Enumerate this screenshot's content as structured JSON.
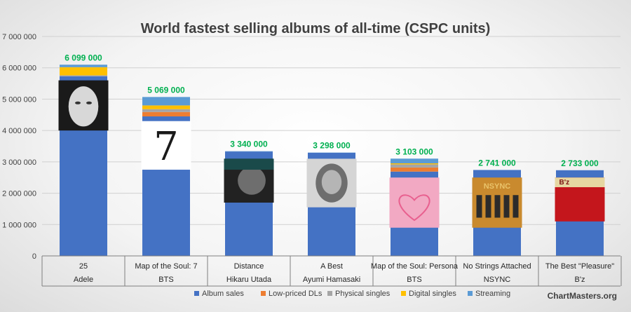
{
  "chart_data": {
    "type": "bar",
    "stacked": true,
    "title": "World fastest selling albums of all-time (CSPC units)",
    "categories": [
      "25",
      "Map of the Soul: 7",
      "Distance",
      "A Best",
      "Map of the Soul: Persona",
      "No Strings Attached",
      "The Best \"Pleasure\""
    ],
    "artists": [
      "Adele",
      "BTS",
      "Hikaru Utada",
      "Ayumi Hamasaki",
      "BTS",
      "NSYNC",
      "B'z"
    ],
    "totals_labels": [
      "6 099 000",
      "5 069 000",
      "3 340 000",
      "3 298 000",
      "3 103 000",
      "2 741 000",
      "2 733 000"
    ],
    "series": [
      {
        "name": "Album sales",
        "color": "#4472c4",
        "values": [
          5730000,
          4450000,
          3330000,
          3290000,
          2690000,
          2741000,
          2733000
        ]
      },
      {
        "name": "Low-priced DLs",
        "color": "#ed7d31",
        "values": [
          0,
          140000,
          0,
          0,
          130000,
          0,
          0
        ]
      },
      {
        "name": "Physical singles",
        "color": "#a5a5a5",
        "values": [
          30000,
          90000,
          0,
          0,
          100000,
          0,
          0
        ]
      },
      {
        "name": "Digital singles",
        "color": "#ffc000",
        "values": [
          260000,
          120000,
          0,
          0,
          33000,
          0,
          0
        ]
      },
      {
        "name": "Streaming",
        "color": "#5b9bd5",
        "values": [
          79000,
          269000,
          10000,
          8000,
          150000,
          0,
          0
        ]
      }
    ],
    "ylim": [
      0,
      7000000
    ],
    "yticks": [
      0,
      1000000,
      2000000,
      3000000,
      4000000,
      5000000,
      6000000,
      7000000
    ],
    "ytick_labels": [
      "0",
      "1 000 000",
      "2 000 000",
      "3 000 000",
      "4 000 000",
      "5 000 000",
      "6 000 000",
      "7 000 000"
    ],
    "grid": true,
    "legend": "bottom",
    "source": "ChartMasters.org",
    "covers": [
      {
        "bg": "#1a1a1a",
        "fg": "#d8d8d8",
        "text": "",
        "bottom": 4000000,
        "top": 5600000
      },
      {
        "bg": "#ffffff",
        "fg": "#1a1a1a",
        "text": "7",
        "bottom": 2750000,
        "top": 4300000
      },
      {
        "bg": "#222222",
        "fg": "#6e6e6e",
        "text": "",
        "bottom": 1700000,
        "top": 3100000
      },
      {
        "bg": "#d5d5d5",
        "fg": "#6e6e6e",
        "text": "",
        "bottom": 1550000,
        "top": 3100000
      },
      {
        "bg": "#f2a9c3",
        "fg": "#e8608f",
        "text": "",
        "bottom": 900000,
        "top": 2500000
      },
      {
        "bg": "#c98a2e",
        "fg": "#e9c36a",
        "text": "NSYNC",
        "bottom": 900000,
        "top": 2500000
      },
      {
        "bg": "#c4161c",
        "fg": "#e6d7a2",
        "text": "B'z",
        "bottom": 1100000,
        "top": 2500000
      }
    ]
  }
}
